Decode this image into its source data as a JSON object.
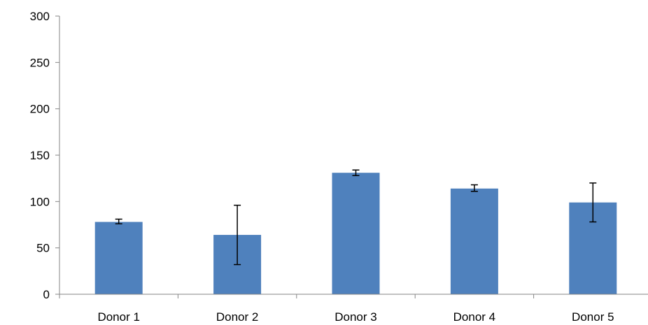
{
  "chart_data": {
    "type": "bar",
    "categories": [
      "Donor 1",
      "Donor 2",
      "Donor 3",
      "Donor 4",
      "Donor 5"
    ],
    "values": [
      78,
      64,
      131,
      114,
      99
    ],
    "error_bars": [
      {
        "low": 76,
        "high": 81
      },
      {
        "low": 32,
        "high": 96
      },
      {
        "low": 128,
        "high": 134
      },
      {
        "low": 111,
        "high": 118
      },
      {
        "low": 78,
        "high": 120
      }
    ],
    "title": "",
    "xlabel": "",
    "ylabel": "",
    "ylim": [
      0,
      300
    ],
    "yticks": [
      "0",
      "50",
      "100",
      "150",
      "200",
      "250",
      "300"
    ],
    "grid": false,
    "legend": "none",
    "colors": {
      "bar": "#4F81BD",
      "error_bar": "#000000",
      "axis": "#868686"
    }
  }
}
